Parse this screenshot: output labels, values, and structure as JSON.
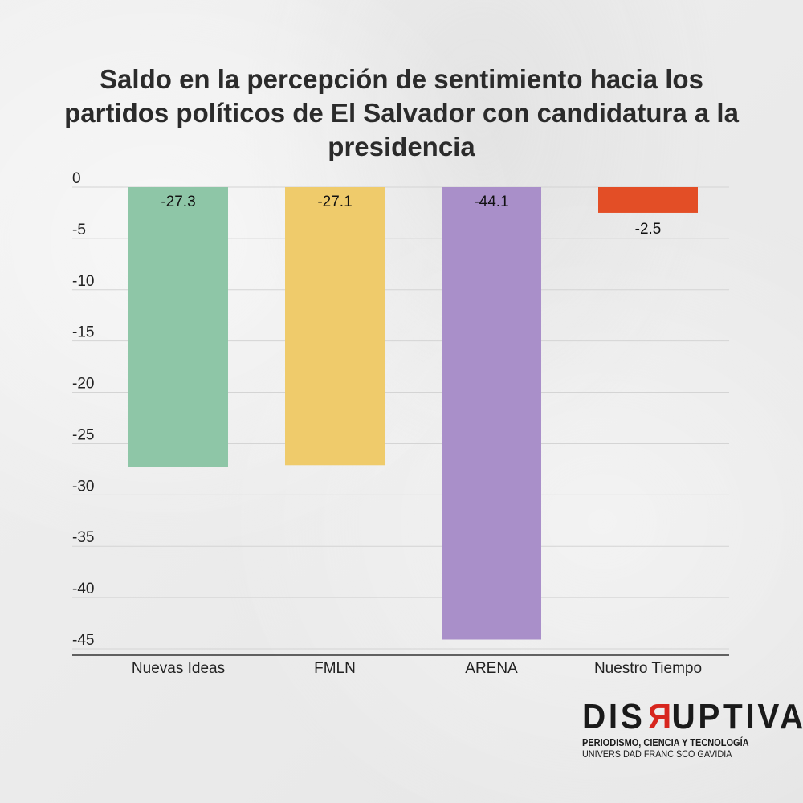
{
  "chart_data": {
    "type": "bar",
    "title": "Saldo en la percepción de sentimiento hacia los partidos políticos de El Salvador con candidatura a la presidencia",
    "categories": [
      "Nuevas Ideas",
      "FMLN",
      "ARENA",
      "Nuestro Tiempo"
    ],
    "values": [
      -27.3,
      -27.1,
      -44.1,
      -2.5
    ],
    "data_labels": [
      "-27.3",
      "-27.1",
      "-44.1",
      "-2.5"
    ],
    "colors": [
      "#8ec6a7",
      "#efcb6b",
      "#a98fc9",
      "#e34e26"
    ],
    "ylim": [
      -45,
      0
    ],
    "yticks": [
      0,
      -5,
      -10,
      -15,
      -20,
      -25,
      -30,
      -35,
      -40,
      -45
    ],
    "xlabel": "",
    "ylabel": "",
    "grid": true,
    "legend": "none"
  },
  "logo": {
    "pre": "DIS",
    "r": "R",
    "post": "UPTIVA",
    "line1": "PERIODISMO, CIENCIA Y TECNOLOGÍA",
    "line2": "UNIVERSIDAD FRANCISCO GAVIDIA"
  }
}
